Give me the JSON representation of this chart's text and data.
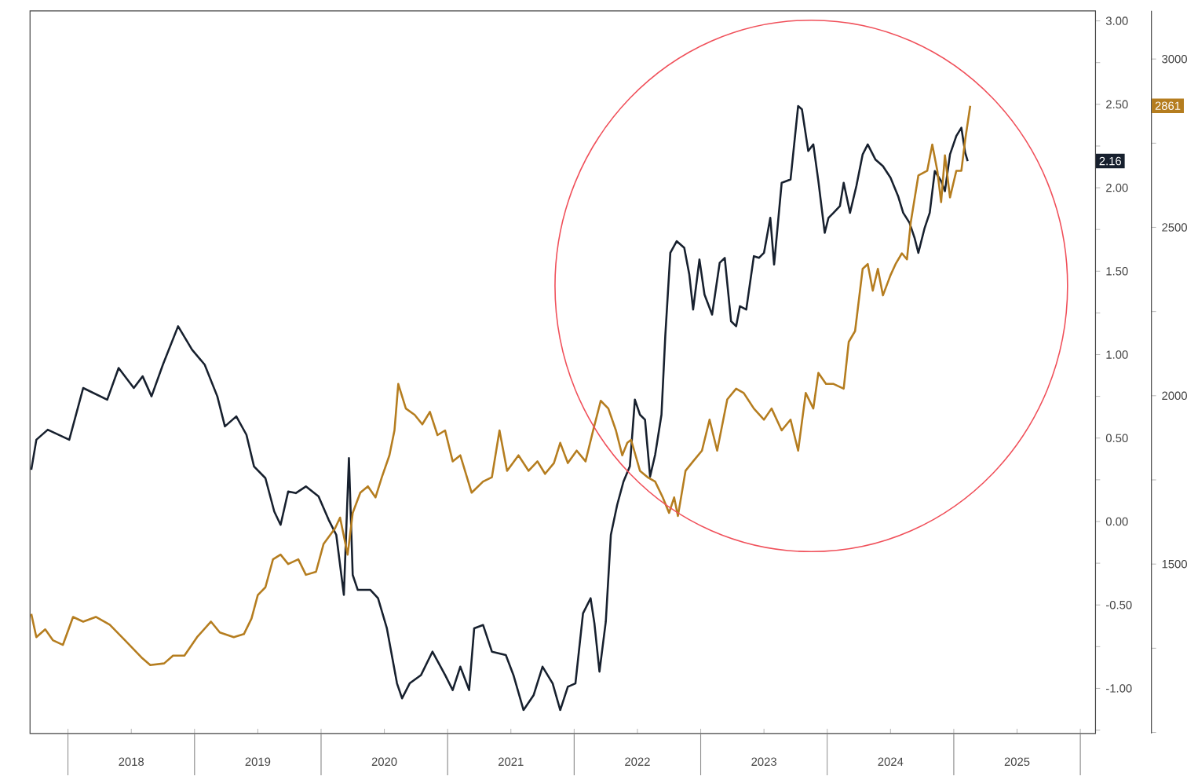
{
  "chart_data": {
    "type": "line",
    "xlim": [
      2017.7,
      2026.12
    ],
    "xticks": [
      {
        "value": 2018,
        "label": null
      },
      {
        "value": 2018.5,
        "label": "2018"
      },
      {
        "value": 2019,
        "label": null
      },
      {
        "value": 2019.5,
        "label": "2019"
      },
      {
        "value": 2020,
        "label": null
      },
      {
        "value": 2020.5,
        "label": "2020"
      },
      {
        "value": 2021,
        "label": null
      },
      {
        "value": 2021.5,
        "label": "2021"
      },
      {
        "value": 2022,
        "label": null
      },
      {
        "value": 2022.5,
        "label": "2022"
      },
      {
        "value": 2023,
        "label": null
      },
      {
        "value": 2023.5,
        "label": "2023"
      },
      {
        "value": 2024,
        "label": null
      },
      {
        "value": 2024.5,
        "label": "2024"
      },
      {
        "value": 2025,
        "label": null
      },
      {
        "value": 2025.5,
        "label": "2025"
      },
      {
        "value": 2026,
        "label": null
      }
    ],
    "ylim": [
      -1.27,
      3.06
    ],
    "yticks": [
      {
        "value": -1.25,
        "label": null
      },
      {
        "value": -1,
        "label": "-1.00"
      },
      {
        "value": -0.75,
        "label": null
      },
      {
        "value": -0.5,
        "label": "-0.50"
      },
      {
        "value": -0.25,
        "label": null
      },
      {
        "value": 0,
        "label": "0.00"
      },
      {
        "value": 0.25,
        "label": null
      },
      {
        "value": 0.5,
        "label": "0.50"
      },
      {
        "value": 0.75,
        "label": null
      },
      {
        "value": 1,
        "label": "1.00"
      },
      {
        "value": 1.25,
        "label": null
      },
      {
        "value": 1.5,
        "label": "1.50"
      },
      {
        "value": 1.75,
        "label": null
      },
      {
        "value": 2,
        "label": "2.00"
      },
      {
        "value": 2.25,
        "label": null
      },
      {
        "value": 2.5,
        "label": "2.50"
      },
      {
        "value": 2.75,
        "label": null
      },
      {
        "value": 3,
        "label": "3.00"
      }
    ],
    "y2lim": [
      997,
      3143
    ],
    "y2ticks": [
      {
        "value": 1000,
        "label": null
      },
      {
        "value": 1250,
        "label": null
      },
      1500,
      {
        "value": 1750,
        "label": null
      },
      2000,
      {
        "value": 2250,
        "label": null
      },
      2500,
      {
        "value": 2750,
        "label": null
      },
      3000
    ],
    "annotations": [
      "2.16",
      "2861"
    ],
    "series": [
      {
        "color": "#17202e",
        "axis": "y",
        "x": [
          2017.71,
          2017.75,
          2017.84,
          2018.01,
          2018.12,
          2018.31,
          2018.4,
          2018.52,
          2018.59,
          2018.66,
          2018.75,
          2018.87,
          2018.98,
          2019.08,
          2019.18,
          2019.24,
          2019.33,
          2019.41,
          2019.47,
          2019.56,
          2019.63,
          2019.68,
          2019.74,
          2019.8,
          2019.88,
          2019.98,
          2020.06,
          2020.12,
          2020.18,
          2020.22,
          2020.25,
          2020.29,
          2020.39,
          2020.45,
          2020.52,
          2020.6,
          2020.64,
          2020.7,
          2020.79,
          2020.88,
          2020.98,
          2021.04,
          2021.1,
          2021.17,
          2021.21,
          2021.28,
          2021.35,
          2021.46,
          2021.52,
          2021.6,
          2021.68,
          2021.75,
          2021.83,
          2021.89,
          2021.95,
          2022.01,
          2022.07,
          2022.13,
          2022.16,
          2022.2,
          2022.25,
          2022.29,
          2022.34,
          2022.39,
          2022.44,
          2022.48,
          2022.52,
          2022.56,
          2022.6,
          2022.64,
          2022.69,
          2022.72,
          2022.76,
          2022.81,
          2022.87,
          2022.91,
          2022.94,
          2022.99,
          2023.03,
          2023.09,
          2023.15,
          2023.19,
          2023.24,
          2023.28,
          2023.31,
          2023.36,
          2023.42,
          2023.46,
          2023.5,
          2023.55,
          2023.58,
          2023.64,
          2023.71,
          2023.77,
          2023.8,
          2023.85,
          2023.89,
          2023.93,
          2023.98,
          2024.01,
          2024.05,
          2024.1,
          2024.13,
          2024.18,
          2024.23,
          2024.28,
          2024.32,
          2024.38,
          2024.44,
          2024.5,
          2024.56,
          2024.6,
          2024.65,
          2024.69,
          2024.72,
          2024.77,
          2024.81,
          2024.85,
          2024.9,
          2024.93,
          2024.97,
          2025.02,
          2025.06,
          2025.09,
          2025.11
        ],
        "values": [
          0.31,
          0.49,
          0.55,
          0.49,
          0.8,
          0.73,
          0.92,
          0.8,
          0.87,
          0.75,
          0.94,
          1.17,
          1.03,
          0.94,
          0.75,
          0.57,
          0.63,
          0.52,
          0.33,
          0.26,
          0.06,
          -0.02,
          0.18,
          0.17,
          0.21,
          0.15,
          0.01,
          -0.08,
          -0.44,
          0.38,
          -0.32,
          -0.41,
          -0.41,
          -0.46,
          -0.64,
          -0.97,
          -1.06,
          -0.97,
          -0.92,
          -0.78,
          -0.92,
          -1.01,
          -0.87,
          -1.01,
          -0.64,
          -0.62,
          -0.78,
          -0.8,
          -0.92,
          -1.13,
          -1.04,
          -0.87,
          -0.97,
          -1.13,
          -0.99,
          -0.97,
          -0.55,
          -0.46,
          -0.61,
          -0.9,
          -0.6,
          -0.08,
          0.1,
          0.24,
          0.33,
          0.73,
          0.64,
          0.61,
          0.27,
          0.4,
          0.64,
          1.11,
          1.61,
          1.68,
          1.64,
          1.48,
          1.27,
          1.57,
          1.36,
          1.24,
          1.55,
          1.58,
          1.2,
          1.17,
          1.29,
          1.27,
          1.59,
          1.58,
          1.61,
          1.82,
          1.54,
          2.03,
          2.05,
          2.49,
          2.47,
          2.22,
          2.26,
          2.04,
          1.73,
          1.82,
          1.85,
          1.89,
          2.03,
          1.85,
          2.01,
          2.2,
          2.26,
          2.17,
          2.13,
          2.06,
          1.95,
          1.85,
          1.79,
          1.7,
          1.61,
          1.76,
          1.85,
          2.1,
          2.04,
          1.98,
          2.2,
          2.31,
          2.36,
          2.21,
          2.16
        ]
      },
      {
        "color": "#b57d1f",
        "axis": "y2",
        "x": [
          2017.71,
          2017.75,
          2017.82,
          2017.88,
          2017.96,
          2018.04,
          2018.12,
          2018.22,
          2018.33,
          2018.45,
          2018.58,
          2018.65,
          2018.76,
          2018.83,
          2018.92,
          2019.02,
          2019.13,
          2019.2,
          2019.31,
          2019.39,
          2019.45,
          2019.5,
          2019.56,
          2019.62,
          2019.68,
          2019.74,
          2019.82,
          2019.88,
          2019.96,
          2020.02,
          2020.11,
          2020.15,
          2020.21,
          2020.25,
          2020.31,
          2020.37,
          2020.43,
          2020.48,
          2020.54,
          2020.58,
          2020.61,
          2020.67,
          2020.74,
          2020.8,
          2020.86,
          2020.92,
          2020.98,
          2021.04,
          2021.1,
          2021.19,
          2021.28,
          2021.35,
          2021.41,
          2021.47,
          2021.56,
          2021.64,
          2021.71,
          2021.77,
          2021.84,
          2021.89,
          2021.95,
          2022.02,
          2022.09,
          2022.15,
          2022.21,
          2022.27,
          2022.33,
          2022.38,
          2022.42,
          2022.45,
          2022.52,
          2022.58,
          2022.64,
          2022.7,
          2022.75,
          2022.79,
          2022.82,
          2022.88,
          2022.94,
          2023.01,
          2023.07,
          2023.13,
          2023.21,
          2023.28,
          2023.34,
          2023.42,
          2023.5,
          2023.56,
          2023.64,
          2023.71,
          2023.77,
          2023.83,
          2023.89,
          2023.93,
          2023.99,
          2024.05,
          2024.13,
          2024.17,
          2024.22,
          2024.28,
          2024.32,
          2024.36,
          2024.4,
          2024.44,
          2024.5,
          2024.54,
          2024.59,
          2024.63,
          2024.66,
          2024.72,
          2024.79,
          2024.83,
          2024.87,
          2024.9,
          2024.93,
          2024.97,
          2025.02,
          2025.06,
          2025.09,
          2025.13
        ],
        "values": [
          1352,
          1283,
          1306,
          1274,
          1260,
          1343,
          1329,
          1343,
          1320,
          1274,
          1223,
          1200,
          1205,
          1228,
          1228,
          1283,
          1329,
          1297,
          1283,
          1292,
          1338,
          1408,
          1431,
          1514,
          1528,
          1500,
          1514,
          1468,
          1477,
          1560,
          1606,
          1638,
          1528,
          1652,
          1712,
          1731,
          1698,
          1758,
          1823,
          1897,
          2035,
          1962,
          1943,
          1915,
          1952,
          1883,
          1897,
          1805,
          1823,
          1712,
          1745,
          1758,
          1897,
          1777,
          1823,
          1777,
          1805,
          1768,
          1800,
          1860,
          1800,
          1837,
          1805,
          1897,
          1985,
          1962,
          1897,
          1823,
          1860,
          1869,
          1777,
          1758,
          1745,
          1698,
          1652,
          1698,
          1643,
          1777,
          1805,
          1837,
          1929,
          1837,
          1989,
          2021,
          2008,
          1962,
          1929,
          1962,
          1897,
          1929,
          1837,
          2008,
          1962,
          2068,
          2035,
          2035,
          2021,
          2160,
          2192,
          2377,
          2391,
          2312,
          2377,
          2298,
          2358,
          2391,
          2423,
          2405,
          2515,
          2654,
          2668,
          2746,
          2668,
          2575,
          2714,
          2589,
          2668,
          2668,
          2760,
          2861
        ]
      }
    ]
  }
}
